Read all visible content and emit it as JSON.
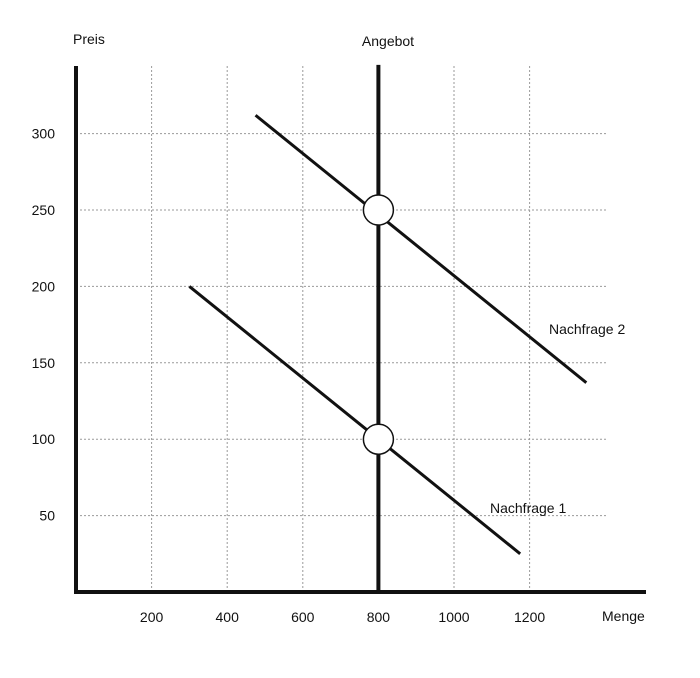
{
  "chart_data": {
    "type": "line",
    "xlabel": "Menge",
    "ylabel": "Preis",
    "x_ticks": [
      "200",
      "400",
      "600",
      "800",
      "1000",
      "1200"
    ],
    "y_ticks": [
      "50",
      "100",
      "150",
      "200",
      "250",
      "300"
    ],
    "grid": true,
    "series": [
      {
        "name": "Angebot",
        "x": [
          800,
          800
        ],
        "y": [
          0,
          345
        ]
      },
      {
        "name": "Nachfrage 1",
        "x": [
          300,
          1175
        ],
        "y": [
          200,
          25
        ]
      },
      {
        "name": "Nachfrage 2",
        "x": [
          475,
          1350
        ],
        "y": [
          312,
          137
        ]
      }
    ],
    "equilibria": [
      {
        "x": 800,
        "y": 100
      },
      {
        "x": 800,
        "y": 250
      }
    ]
  },
  "colors": {
    "line": "#111111",
    "grid": "#9a9a9a",
    "marker_fill": "#ffffff"
  }
}
